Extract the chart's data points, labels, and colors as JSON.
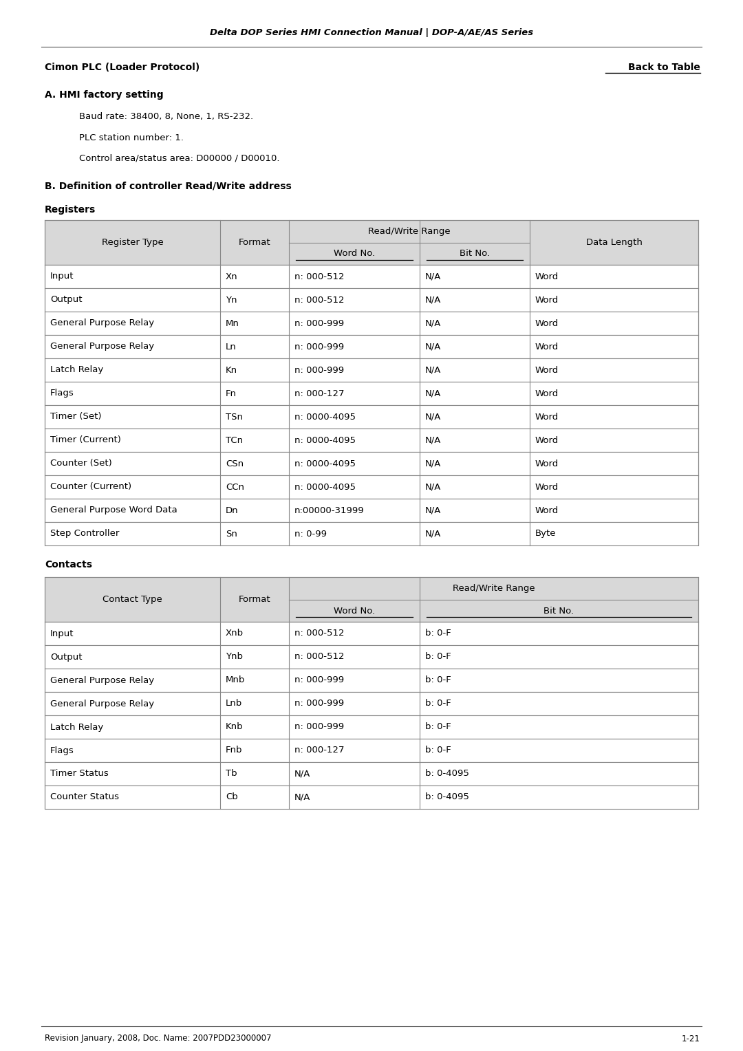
{
  "header_title": "Delta DOP Series HMI Connection Manual | DOP-A/AE/AS Series",
  "left_heading": "Cimon PLC (Loader Protocol)",
  "right_heading": "Back to Table",
  "section_a_title": "A. HMI factory setting",
  "section_a_lines": [
    "Baud rate: 38400, 8, None, 1, RS-232.",
    "PLC station number: 1.",
    "Control area/status area: D00000 / D00010."
  ],
  "section_b_title": "B. Definition of controller Read/Write address",
  "registers_title": "Registers",
  "reg_rows": [
    [
      "Input",
      "Xn",
      "n: 000-512",
      "N/A",
      "Word"
    ],
    [
      "Output",
      "Yn",
      "n: 000-512",
      "N/A",
      "Word"
    ],
    [
      "General Purpose Relay",
      "Mn",
      "n: 000-999",
      "N/A",
      "Word"
    ],
    [
      "General Purpose Relay",
      "Ln",
      "n: 000-999",
      "N/A",
      "Word"
    ],
    [
      "Latch Relay",
      "Kn",
      "n: 000-999",
      "N/A",
      "Word"
    ],
    [
      "Flags",
      "Fn",
      "n: 000-127",
      "N/A",
      "Word"
    ],
    [
      "Timer (Set)",
      "TSn",
      "n: 0000-4095",
      "N/A",
      "Word"
    ],
    [
      "Timer (Current)",
      "TCn",
      "n: 0000-4095",
      "N/A",
      "Word"
    ],
    [
      "Counter (Set)",
      "CSn",
      "n: 0000-4095",
      "N/A",
      "Word"
    ],
    [
      "Counter (Current)",
      "CCn",
      "n: 0000-4095",
      "N/A",
      "Word"
    ],
    [
      "General Purpose Word Data",
      "Dn",
      "n:00000-31999",
      "N/A",
      "Word"
    ],
    [
      "Step Controller",
      "Sn",
      "n: 0-99",
      "N/A",
      "Byte"
    ]
  ],
  "contacts_title": "Contacts",
  "con_rows": [
    [
      "Input",
      "Xnb",
      "n: 000-512",
      "b: 0-F"
    ],
    [
      "Output",
      "Ynb",
      "n: 000-512",
      "b: 0-F"
    ],
    [
      "General Purpose Relay",
      "Mnb",
      "n: 000-999",
      "b: 0-F"
    ],
    [
      "General Purpose Relay",
      "Lnb",
      "n: 000-999",
      "b: 0-F"
    ],
    [
      "Latch Relay",
      "Knb",
      "n: 000-999",
      "b: 0-F"
    ],
    [
      "Flags",
      "Fnb",
      "n: 000-127",
      "b: 0-F"
    ],
    [
      "Timer Status",
      "Tb",
      "N/A",
      "b: 0-4095"
    ],
    [
      "Counter Status",
      "Cb",
      "N/A",
      "b: 0-4095"
    ]
  ],
  "footer_left": "Revision January, 2008, Doc. Name: 2007PDD23000007",
  "footer_right": "1-21",
  "bg_color": "#ffffff",
  "table_header_bg": "#d8d8d8",
  "border_color": "#888888",
  "text_color": "#000000",
  "link_color": "#000000"
}
